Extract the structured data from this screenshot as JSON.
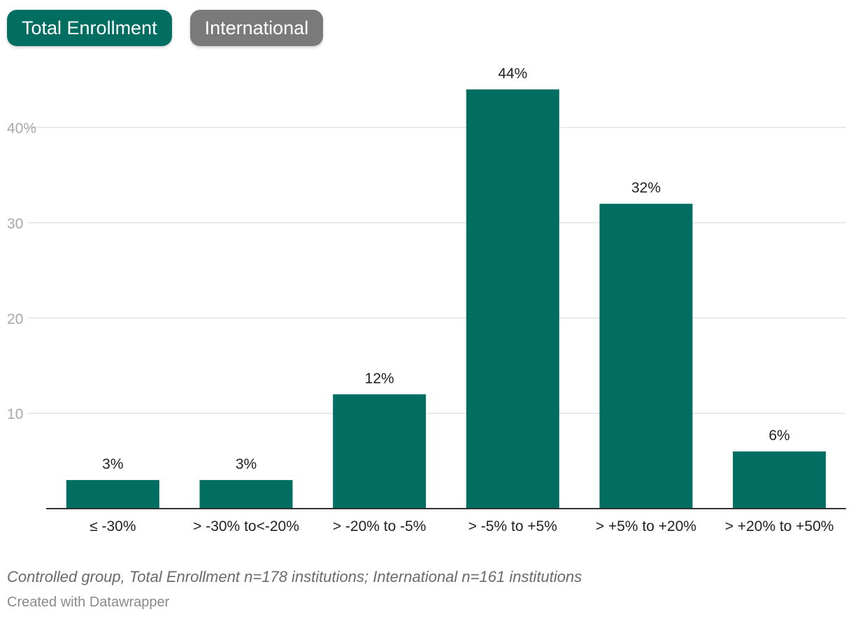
{
  "toggles": {
    "total_label": "Total Enrollment",
    "international_label": "International",
    "active": "Total Enrollment"
  },
  "chart_data": {
    "type": "bar",
    "categories": [
      "≤ -30%",
      "> -30% to<-20%",
      "> -20% to -5%",
      "> -5% to +5%",
      "> +5% to +20%",
      "> +20% to +50%"
    ],
    "values": [
      3,
      3,
      12,
      44,
      32,
      6
    ],
    "value_labels": [
      "3%",
      "3%",
      "12%",
      "44%",
      "32%",
      "6%"
    ],
    "yticks": [
      10,
      20,
      30,
      40
    ],
    "ytick_labels": [
      "10",
      "20",
      "30",
      "40%"
    ],
    "ylim": [
      0,
      44
    ],
    "grid": true,
    "bar_color": "#026e62"
  },
  "footer": {
    "note": "Controlled group, Total Enrollment n=178 institutions; International n=161 institutions",
    "credit": "Created with Datawrapper"
  }
}
